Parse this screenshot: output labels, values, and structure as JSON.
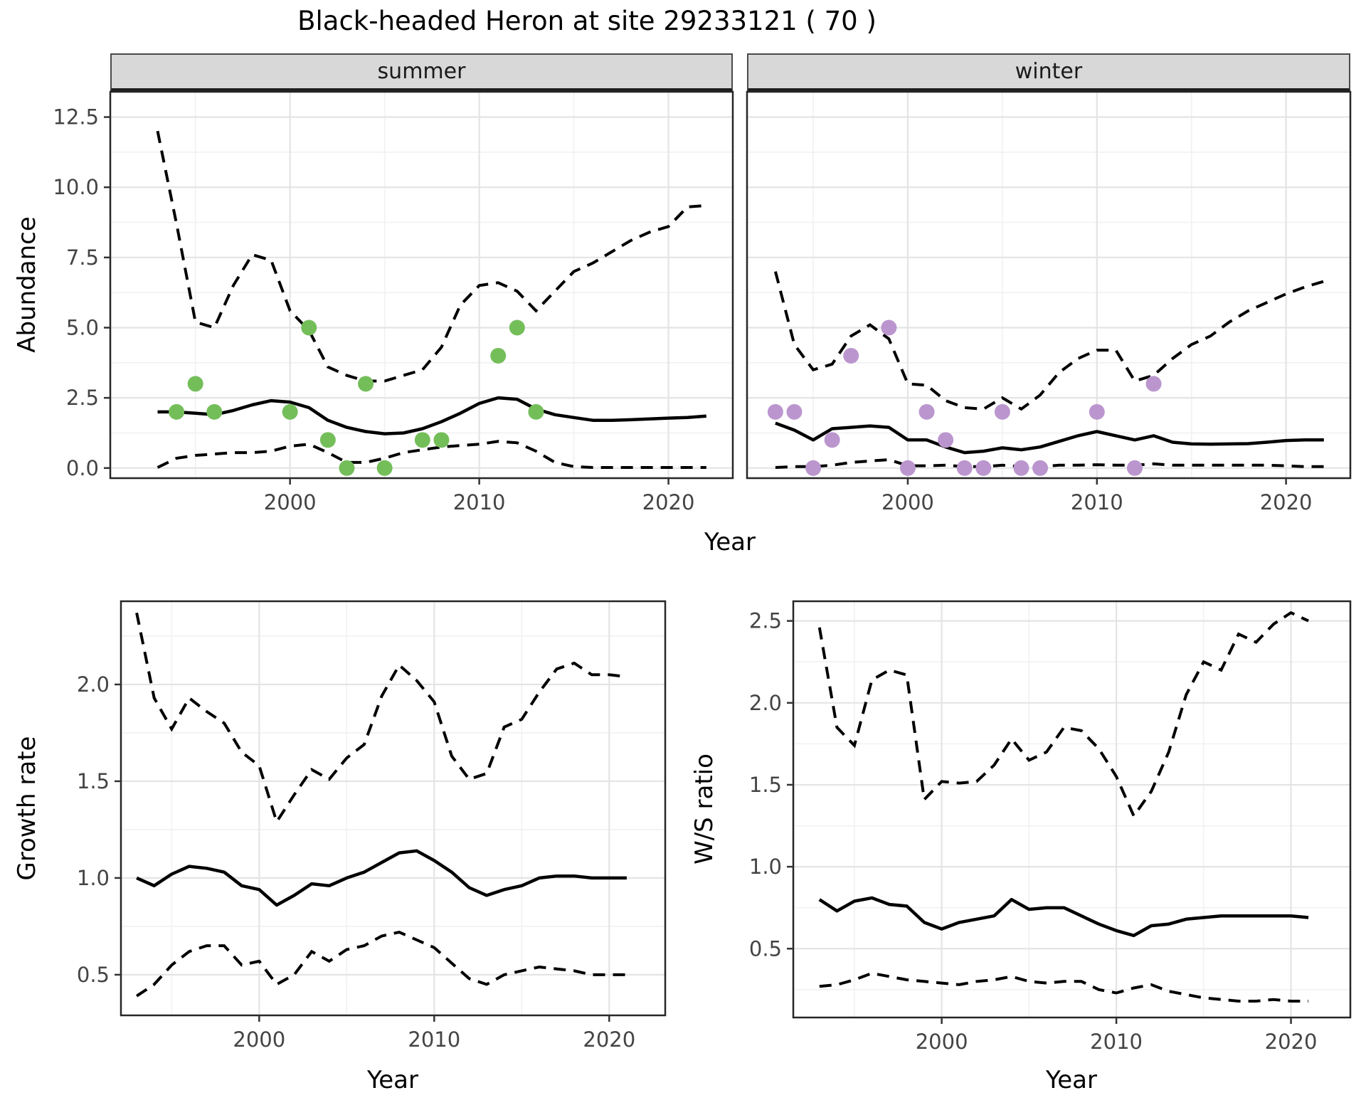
{
  "title": "Black-headed Heron at site 29233121 ( 70 )",
  "chart_data": {
    "type": "line",
    "title": "Black-headed Heron at site 29233121 ( 70 )",
    "xlabel": "Year",
    "grid": "on",
    "legend": "none",
    "line_color": "#000000",
    "panels": [
      {
        "id": "summer",
        "facet": "summer",
        "ylabel": "Abundance",
        "xlim": [
          1990.5,
          2023.4
        ],
        "ylim": [
          -0.36,
          13.4
        ],
        "xticks": [
          2000,
          2010,
          2020
        ],
        "xtick_labels": [
          "2000",
          "2010",
          "2020"
        ],
        "yticks": [
          0,
          2.5,
          5,
          7.5,
          10,
          12.5
        ],
        "ytick_labels": [
          "0.0",
          "2.5",
          "5.0",
          "7.5",
          "10.0",
          "12.5"
        ],
        "show_ytick_labels": true,
        "years": [
          1993,
          1994,
          1995,
          1996,
          1997,
          1998,
          1999,
          2000,
          2001,
          2002,
          2003,
          2004,
          2005,
          2006,
          2007,
          2008,
          2009,
          2010,
          2011,
          2012,
          2013,
          2014,
          2015,
          2016,
          2017,
          2018,
          2019,
          2020,
          2021,
          2022
        ],
        "series": [
          {
            "name": "upper_ci_dashed",
            "values": [
              12.0,
              8.7,
              5.2,
              5.0,
              6.5,
              7.6,
              7.4,
              5.6,
              4.9,
              3.6,
              3.3,
              3.1,
              3.1,
              3.3,
              3.5,
              4.3,
              5.8,
              6.5,
              6.6,
              6.3,
              5.6,
              6.3,
              7.0,
              7.3,
              7.7,
              8.1,
              8.4,
              8.6,
              9.3,
              9.35
            ]
          },
          {
            "name": "fit_solid",
            "values": [
              2.0,
              2.0,
              1.95,
              1.9,
              2.05,
              2.25,
              2.4,
              2.35,
              2.15,
              1.7,
              1.45,
              1.3,
              1.22,
              1.25,
              1.4,
              1.65,
              1.95,
              2.3,
              2.5,
              2.45,
              2.1,
              1.9,
              1.8,
              1.7,
              1.7,
              1.72,
              1.75,
              1.78,
              1.8,
              1.85
            ]
          },
          {
            "name": "lower_ci_dashed",
            "values": [
              0.02,
              0.35,
              0.45,
              0.5,
              0.55,
              0.55,
              0.6,
              0.78,
              0.85,
              0.55,
              0.2,
              0.2,
              0.35,
              0.55,
              0.65,
              0.75,
              0.8,
              0.85,
              0.95,
              0.9,
              0.6,
              0.2,
              0.05,
              0.02,
              0.02,
              0.02,
              0.02,
              0.02,
              0.02,
              0.02
            ]
          }
        ],
        "points": {
          "color": "#74BE5A",
          "years": [
            1994,
            1995,
            1996,
            2000,
            2001,
            2002,
            2003,
            2004,
            2005,
            2007,
            2008,
            2011,
            2012,
            2013
          ],
          "values": [
            2,
            3,
            2,
            2,
            5,
            1,
            0,
            3,
            0,
            1,
            1,
            4,
            5,
            2
          ]
        }
      },
      {
        "id": "winter",
        "facet": "winter",
        "ylabel": "Abundance",
        "xlim": [
          1991.5,
          2023.4
        ],
        "ylim": [
          -0.36,
          13.4
        ],
        "xticks": [
          2000,
          2010,
          2020
        ],
        "xtick_labels": [
          "2000",
          "2010",
          "2020"
        ],
        "yticks": [
          0,
          2.5,
          5,
          7.5,
          10,
          12.5
        ],
        "ytick_labels": [
          "0.0",
          "2.5",
          "5.0",
          "7.5",
          "10.0",
          "12.5"
        ],
        "show_ytick_labels": false,
        "years": [
          1993,
          1994,
          1995,
          1996,
          1997,
          1998,
          1999,
          2000,
          2001,
          2002,
          2003,
          2004,
          2005,
          2006,
          2007,
          2008,
          2009,
          2010,
          2011,
          2012,
          2013,
          2014,
          2015,
          2016,
          2017,
          2018,
          2019,
          2020,
          2021,
          2022
        ],
        "series": [
          {
            "name": "upper_ci_dashed",
            "values": [
              7.0,
              4.4,
              3.5,
              3.7,
              4.7,
              5.1,
              4.6,
              3.0,
              2.95,
              2.4,
              2.15,
              2.1,
              2.5,
              2.1,
              2.6,
              3.4,
              3.9,
              4.2,
              4.2,
              3.1,
              3.3,
              3.9,
              4.4,
              4.7,
              5.2,
              5.6,
              5.9,
              6.2,
              6.45,
              6.65
            ]
          },
          {
            "name": "fit_solid",
            "values": [
              1.6,
              1.35,
              1.0,
              1.4,
              1.45,
              1.5,
              1.45,
              1.0,
              1.0,
              0.75,
              0.55,
              0.6,
              0.72,
              0.65,
              0.75,
              0.95,
              1.15,
              1.3,
              1.15,
              1.0,
              1.15,
              0.92,
              0.86,
              0.85,
              0.86,
              0.87,
              0.92,
              0.98,
              1.0,
              1.0
            ]
          },
          {
            "name": "lower_ci_dashed",
            "values": [
              0.02,
              0.05,
              0.05,
              0.1,
              0.2,
              0.25,
              0.3,
              0.08,
              0.08,
              0.1,
              0.05,
              0.05,
              0.1,
              0.05,
              0.05,
              0.1,
              0.1,
              0.12,
              0.1,
              0.1,
              0.15,
              0.1,
              0.1,
              0.1,
              0.1,
              0.1,
              0.1,
              0.08,
              0.05,
              0.05
            ]
          }
        ],
        "points": {
          "color": "#BB96CE",
          "years": [
            1993,
            1994,
            1995,
            1996,
            1997,
            1999,
            2000,
            2001,
            2002,
            2003,
            2004,
            2005,
            2006,
            2007,
            2010,
            2012,
            2013
          ],
          "values": [
            2,
            2,
            0,
            1,
            4,
            5,
            0,
            2,
            1,
            0,
            0,
            2,
            0,
            0,
            2,
            0,
            3
          ]
        }
      },
      {
        "id": "growth",
        "facet": null,
        "ylabel": "Growth rate",
        "xlim": [
          1992.1,
          2023.2
        ],
        "ylim": [
          0.29,
          2.43
        ],
        "xticks": [
          2000,
          2010,
          2020
        ],
        "xtick_labels": [
          "2000",
          "2010",
          "2020"
        ],
        "yticks": [
          0.5,
          1.0,
          1.5,
          2.0
        ],
        "ytick_labels": [
          "0.5",
          "1.0",
          "1.5",
          "2.0"
        ],
        "show_ytick_labels": true,
        "years": [
          1993,
          1994,
          1995,
          1996,
          1997,
          1998,
          1999,
          2000,
          2001,
          2002,
          2003,
          2004,
          2005,
          2006,
          2007,
          2008,
          2009,
          2010,
          2011,
          2012,
          2013,
          2014,
          2015,
          2016,
          2017,
          2018,
          2019,
          2020,
          2021
        ],
        "series": [
          {
            "name": "upper_ci_dashed",
            "values": [
              2.37,
              1.93,
              1.77,
              1.93,
              1.86,
              1.8,
              1.65,
              1.58,
              1.29,
              1.43,
              1.56,
              1.51,
              1.62,
              1.69,
              1.94,
              2.1,
              2.02,
              1.91,
              1.63,
              1.51,
              1.54,
              1.78,
              1.82,
              1.96,
              2.08,
              2.11,
              2.05,
              2.05,
              2.04
            ]
          },
          {
            "name": "fit_solid",
            "values": [
              1.0,
              0.96,
              1.02,
              1.06,
              1.05,
              1.03,
              0.96,
              0.94,
              0.86,
              0.91,
              0.97,
              0.96,
              1.0,
              1.03,
              1.08,
              1.13,
              1.14,
              1.09,
              1.03,
              0.95,
              0.91,
              0.94,
              0.96,
              1.0,
              1.01,
              1.01,
              1.0,
              1.0,
              1.0
            ]
          },
          {
            "name": "lower_ci_dashed",
            "values": [
              0.39,
              0.45,
              0.55,
              0.62,
              0.65,
              0.65,
              0.55,
              0.57,
              0.45,
              0.5,
              0.62,
              0.57,
              0.63,
              0.65,
              0.7,
              0.72,
              0.68,
              0.64,
              0.56,
              0.48,
              0.45,
              0.5,
              0.52,
              0.54,
              0.53,
              0.52,
              0.5,
              0.5,
              0.5
            ]
          }
        ],
        "points": null
      },
      {
        "id": "ws",
        "facet": null,
        "ylabel": "W/S ratio",
        "xlim": [
          1991.5,
          2023.4
        ],
        "ylim": [
          0.08,
          2.62
        ],
        "xticks": [
          2000,
          2010,
          2020
        ],
        "xtick_labels": [
          "2000",
          "2010",
          "2020"
        ],
        "yticks": [
          0.5,
          1.0,
          1.5,
          2.0,
          2.5
        ],
        "ytick_labels": [
          "0.5",
          "1.0",
          "1.5",
          "2.0",
          "2.5"
        ],
        "show_ytick_labels": true,
        "years": [
          1993,
          1994,
          1995,
          1996,
          1997,
          1998,
          1999,
          2000,
          2001,
          2002,
          2003,
          2004,
          2005,
          2006,
          2007,
          2008,
          2009,
          2010,
          2011,
          2012,
          2013,
          2014,
          2015,
          2016,
          2017,
          2018,
          2019,
          2020,
          2021
        ],
        "series": [
          {
            "name": "upper_ci_dashed",
            "values": [
              2.46,
              1.85,
              1.74,
              2.14,
              2.2,
              2.17,
              1.41,
              1.52,
              1.51,
              1.52,
              1.62,
              1.78,
              1.65,
              1.7,
              1.85,
              1.83,
              1.72,
              1.55,
              1.31,
              1.46,
              1.7,
              2.05,
              2.25,
              2.2,
              2.42,
              2.37,
              2.48,
              2.55,
              2.5
            ]
          },
          {
            "name": "fit_solid",
            "values": [
              0.8,
              0.73,
              0.79,
              0.81,
              0.77,
              0.76,
              0.66,
              0.62,
              0.66,
              0.68,
              0.7,
              0.8,
              0.74,
              0.75,
              0.75,
              0.7,
              0.65,
              0.61,
              0.58,
              0.64,
              0.65,
              0.68,
              0.69,
              0.7,
              0.7,
              0.7,
              0.7,
              0.7,
              0.69
            ]
          },
          {
            "name": "lower_ci_dashed",
            "values": [
              0.27,
              0.28,
              0.31,
              0.35,
              0.33,
              0.31,
              0.3,
              0.29,
              0.28,
              0.3,
              0.31,
              0.33,
              0.3,
              0.29,
              0.3,
              0.3,
              0.25,
              0.23,
              0.26,
              0.28,
              0.24,
              0.22,
              0.2,
              0.19,
              0.18,
              0.18,
              0.19,
              0.18,
              0.18
            ]
          }
        ],
        "points": null
      }
    ]
  }
}
